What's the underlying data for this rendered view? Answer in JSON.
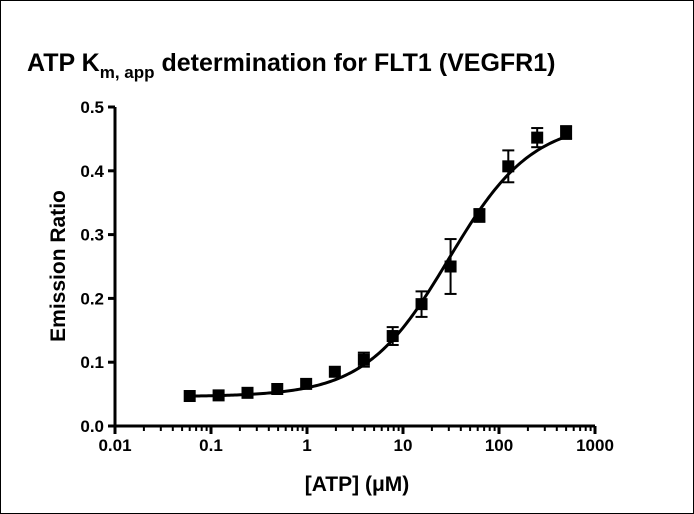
{
  "chart_data": {
    "type": "scatter",
    "title_main": "ATP K",
    "title_sub": "m, app",
    "title_rest": " determination for FLT1 (VEGFR1)",
    "xlabel": "[ATP] (μM)",
    "ylabel": "Emission Ratio",
    "x_scale": "log",
    "xlim": [
      0.01,
      1000
    ],
    "ylim": [
      0.0,
      0.5
    ],
    "x_tick_labels": [
      "0.01",
      "0.1",
      "1",
      "10",
      "100",
      "1000"
    ],
    "y_tick_labels": [
      "0.0",
      "0.1",
      "0.2",
      "0.3",
      "0.4",
      "0.5"
    ],
    "grid": false,
    "legend": "none",
    "series": [
      {
        "x": [
          0.06,
          0.12,
          0.24,
          0.49,
          0.98,
          1.95,
          3.91,
          7.81,
          15.6,
          31.3,
          62.5,
          125,
          250,
          500
        ],
        "y": [
          0.047,
          0.048,
          0.052,
          0.058,
          0.066,
          0.085,
          0.104,
          0.141,
          0.191,
          0.25,
          0.33,
          0.407,
          0.452,
          0.46
        ],
        "err": [
          0.003,
          0.003,
          0.003,
          0.004,
          0.004,
          0.006,
          0.011,
          0.014,
          0.02,
          0.043,
          0.01,
          0.025,
          0.015,
          0.01
        ],
        "marker": "square",
        "color": "#000000"
      }
    ],
    "fit_curve": {
      "model": "sigmoidal",
      "bottom": 0.046,
      "top": 0.478,
      "ec50": 30,
      "hill": 1.0,
      "color": "#000000"
    }
  }
}
